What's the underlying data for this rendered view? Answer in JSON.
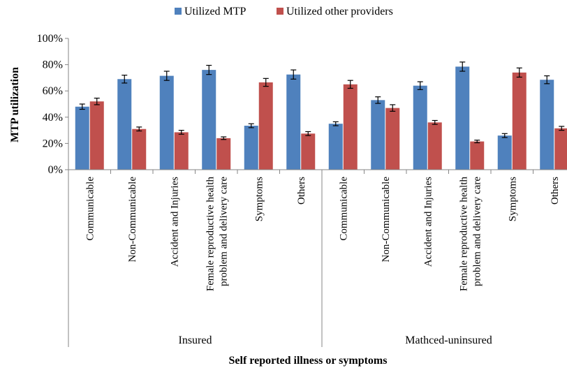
{
  "chart_data": {
    "type": "bar",
    "title": "",
    "ylabel": "MTP utilization",
    "xlabel": "Self reported illness or symptoms",
    "ylim": [
      0,
      100
    ],
    "yticks": [
      0,
      20,
      40,
      60,
      80,
      100
    ],
    "ytick_labels": [
      "0%",
      "20%",
      "40%",
      "60%",
      "80%",
      "100%"
    ],
    "grid": false,
    "legend_position": "top-center",
    "error_bars": true,
    "groups": [
      {
        "name": "Insured",
        "categories": [
          [
            "Communicable"
          ],
          [
            "Non-Communicable"
          ],
          [
            "Accident and Injuries"
          ],
          [
            "Female reproductive health",
            "problem  and delivery care"
          ],
          [
            "Symptoms"
          ],
          [
            "Others"
          ]
        ]
      },
      {
        "name": "Mathced-uninsured",
        "categories": [
          [
            "Communicable"
          ],
          [
            "Non-Communicable"
          ],
          [
            "Accident and Injuries"
          ],
          [
            "Female reproductive health",
            "problem  and delivery care"
          ],
          [
            "Symptoms"
          ],
          [
            "Others"
          ]
        ]
      }
    ],
    "series": [
      {
        "name": "Utilized MTP",
        "color": "#4F81BD",
        "values": [
          48,
          69,
          71.5,
          76,
          33.5,
          72.5,
          35,
          53,
          64,
          78.5,
          26,
          68.5
        ],
        "errors": [
          2,
          3,
          3.5,
          3.5,
          1.5,
          3.5,
          1.5,
          2.5,
          3,
          3.5,
          1.5,
          3
        ]
      },
      {
        "name": "Utilized other providers",
        "color": "#C0504D",
        "values": [
          52,
          31,
          28.5,
          24,
          66.5,
          27.5,
          65,
          47,
          36,
          21.5,
          74,
          31.5
        ],
        "errors": [
          2.5,
          1.5,
          1.5,
          1,
          3,
          1.5,
          3,
          2.5,
          1.5,
          1,
          3.5,
          1.5
        ]
      }
    ]
  }
}
